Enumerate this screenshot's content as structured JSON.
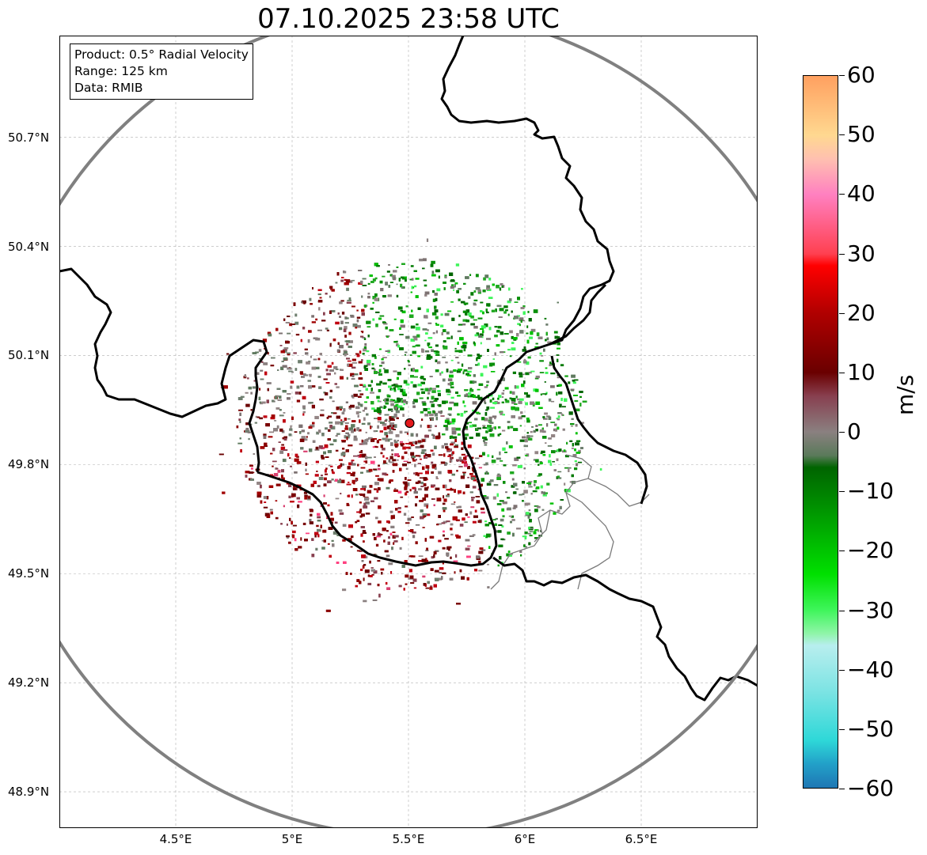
{
  "title": "07.10.2025 23:58 UTC",
  "info_box": {
    "product": "Product: 0.5° Radial Velocity",
    "range": "Range: 125 km",
    "data": "Data: RMIB"
  },
  "map": {
    "lon_range": [
      4.0,
      7.0
    ],
    "lat_range": [
      48.8,
      50.98
    ],
    "radar_site": {
      "lon": 5.505,
      "lat": 49.914
    },
    "range_km": 125,
    "lat_ticks": [
      "50.7°N",
      "50.4°N",
      "50.1°N",
      "49.8°N",
      "49.5°N",
      "49.2°N",
      "48.9°N"
    ],
    "lat_tick_values": [
      50.7,
      50.4,
      50.1,
      49.8,
      49.5,
      49.2,
      48.9
    ],
    "lon_ticks": [
      "4.5°E",
      "5°E",
      "5.5°E",
      "6°E",
      "6.5°E"
    ],
    "lon_tick_values": [
      4.5,
      5.0,
      5.5,
      6.0,
      6.5
    ],
    "colors": {
      "ring": "#808080",
      "border": "#000000",
      "province_border": "#7a7a7a",
      "radar_marker": "#e31a1c",
      "grid": "#b0b0b0"
    }
  },
  "colorbar": {
    "unit": "m/s",
    "min": -60,
    "max": 60,
    "tick_labels": [
      "60",
      "50",
      "40",
      "30",
      "20",
      "10",
      "0",
      "−10",
      "−20",
      "−30",
      "−40",
      "−50",
      "−60"
    ],
    "tick_values": [
      60,
      50,
      40,
      30,
      20,
      10,
      0,
      -10,
      -20,
      -30,
      -40,
      -50,
      -60
    ],
    "gradient_stops": [
      {
        "v": -60,
        "c": "#1f77b4"
      },
      {
        "v": -56,
        "c": "#22a0c8"
      },
      {
        "v": -52,
        "c": "#2ed8d8"
      },
      {
        "v": -44,
        "c": "#7ae3e3"
      },
      {
        "v": -36,
        "c": "#b8eeee"
      },
      {
        "v": -34,
        "c": "#8ff5a8"
      },
      {
        "v": -30,
        "c": "#3ef55a"
      },
      {
        "v": -24,
        "c": "#00e000"
      },
      {
        "v": -16,
        "c": "#00a800"
      },
      {
        "v": -6,
        "c": "#006400"
      },
      {
        "v": -4,
        "c": "#5a7a5a"
      },
      {
        "v": 0,
        "c": "#8a8080"
      },
      {
        "v": 6,
        "c": "#884050"
      },
      {
        "v": 10,
        "c": "#6a0000"
      },
      {
        "v": 20,
        "c": "#b00000"
      },
      {
        "v": 28,
        "c": "#ff0000"
      },
      {
        "v": 30,
        "c": "#ff4050"
      },
      {
        "v": 40,
        "c": "#ff80c0"
      },
      {
        "v": 46,
        "c": "#ffc0b0"
      },
      {
        "v": 50,
        "c": "#ffd890"
      },
      {
        "v": 60,
        "c": "#ffa060"
      }
    ]
  }
}
